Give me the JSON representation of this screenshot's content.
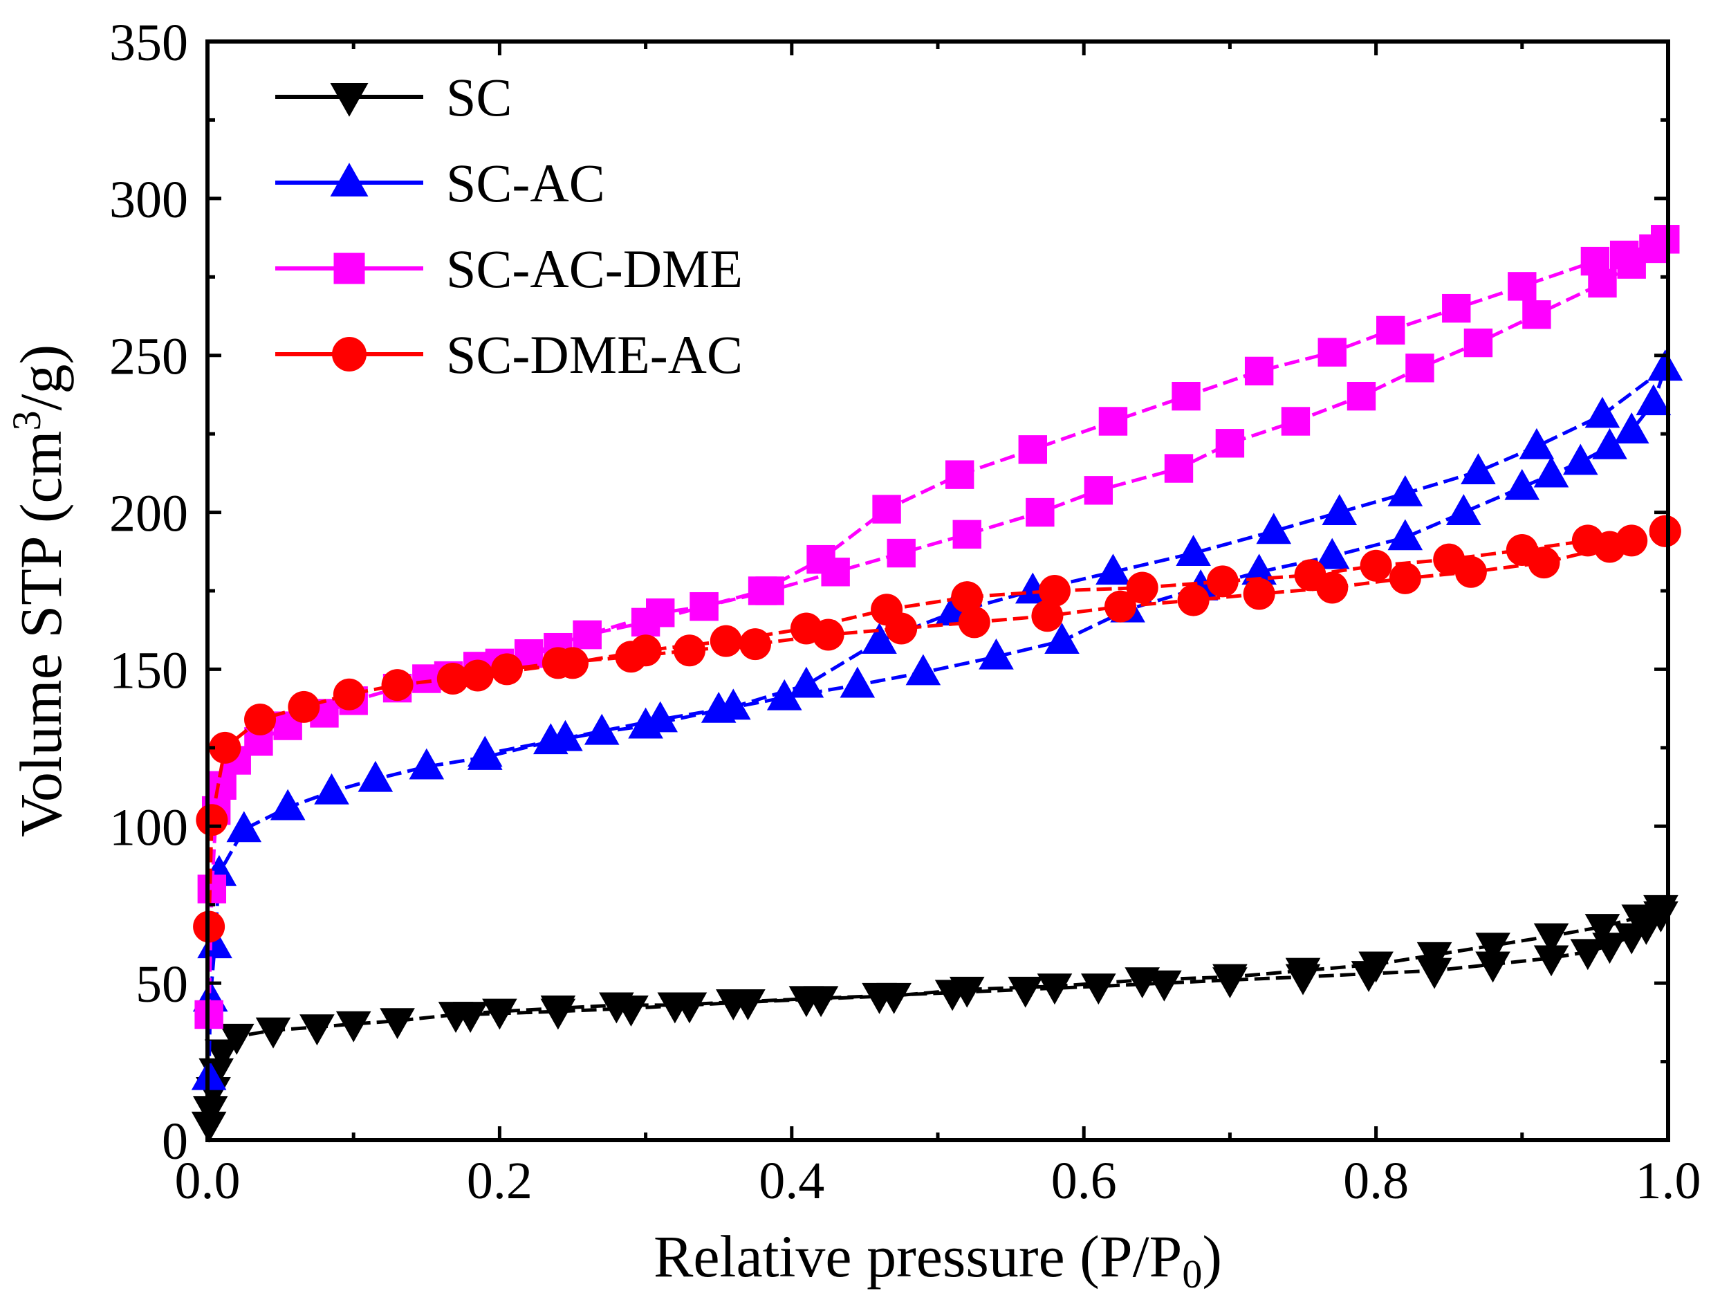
{
  "chart_data": {
    "type": "line",
    "xlabel": "Relative pressure (P/P",
    "xlabel_sub": "0",
    "xlabel_end": ")",
    "ylabel": "Volume STP (cm",
    "ylabel_sup": "3",
    "ylabel_end": "/g)",
    "xlim": [
      0,
      1.0
    ],
    "ylim": [
      0,
      350
    ],
    "x_ticks": [
      0.0,
      0.2,
      0.4,
      0.6,
      0.8,
      1.0
    ],
    "x_tick_labels": [
      "0.0",
      "0.2",
      "0.4",
      "0.6",
      "0.8",
      "1.0"
    ],
    "y_ticks": [
      0,
      50,
      100,
      150,
      200,
      250,
      300,
      350
    ],
    "y_tick_labels": [
      "0",
      "50",
      "100",
      "150",
      "200",
      "250",
      "300",
      "350"
    ],
    "legend_position": "top-left",
    "grid": false,
    "series": [
      {
        "name": "SC",
        "color": "#000000",
        "marker": "triangle-down",
        "adsorption": [
          [
            0.001,
            5
          ],
          [
            0.002,
            10
          ],
          [
            0.004,
            16
          ],
          [
            0.006,
            22
          ],
          [
            0.01,
            28
          ],
          [
            0.02,
            33
          ],
          [
            0.045,
            35
          ],
          [
            0.075,
            36
          ],
          [
            0.1,
            37
          ],
          [
            0.13,
            38
          ],
          [
            0.17,
            40
          ],
          [
            0.2,
            41
          ],
          [
            0.24,
            42
          ],
          [
            0.28,
            43
          ],
          [
            0.32,
            43
          ],
          [
            0.36,
            44
          ],
          [
            0.41,
            45
          ],
          [
            0.46,
            46
          ],
          [
            0.51,
            47
          ],
          [
            0.56,
            48
          ],
          [
            0.61,
            49
          ],
          [
            0.655,
            50
          ],
          [
            0.7,
            51
          ],
          [
            0.75,
            52
          ],
          [
            0.795,
            53
          ],
          [
            0.84,
            54
          ],
          [
            0.88,
            56
          ],
          [
            0.92,
            58
          ],
          [
            0.945,
            60
          ],
          [
            0.96,
            62
          ],
          [
            0.975,
            65
          ],
          [
            0.985,
            68
          ],
          [
            0.995,
            72
          ]
        ],
        "desorption": [
          [
            0.995,
            74
          ],
          [
            0.98,
            71
          ],
          [
            0.955,
            68
          ],
          [
            0.92,
            65
          ],
          [
            0.88,
            62
          ],
          [
            0.84,
            59
          ],
          [
            0.8,
            56
          ],
          [
            0.75,
            54
          ],
          [
            0.7,
            52
          ],
          [
            0.64,
            51
          ],
          [
            0.58,
            49
          ],
          [
            0.52,
            48
          ],
          [
            0.47,
            46
          ],
          [
            0.42,
            45
          ],
          [
            0.37,
            44
          ],
          [
            0.33,
            43
          ],
          [
            0.29,
            42
          ],
          [
            0.24,
            41
          ],
          [
            0.18,
            40
          ]
        ]
      },
      {
        "name": "SC-AC",
        "color": "#0000ff",
        "marker": "triangle-up",
        "adsorption": [
          [
            0.001,
            20
          ],
          [
            0.002,
            45
          ],
          [
            0.005,
            62
          ],
          [
            0.008,
            85
          ],
          [
            0.025,
            99
          ],
          [
            0.055,
            106
          ],
          [
            0.085,
            111
          ],
          [
            0.115,
            115
          ],
          [
            0.15,
            119
          ],
          [
            0.19,
            122
          ],
          [
            0.235,
            127
          ],
          [
            0.27,
            130
          ],
          [
            0.3,
            132
          ],
          [
            0.35,
            137
          ],
          [
            0.395,
            141
          ],
          [
            0.445,
            145
          ],
          [
            0.49,
            149
          ],
          [
            0.54,
            154
          ],
          [
            0.585,
            159
          ],
          [
            0.63,
            169
          ],
          [
            0.68,
            176
          ],
          [
            0.72,
            181
          ],
          [
            0.77,
            186
          ],
          [
            0.82,
            192
          ],
          [
            0.86,
            200
          ],
          [
            0.9,
            208
          ],
          [
            0.92,
            212
          ],
          [
            0.94,
            216
          ],
          [
            0.96,
            221
          ],
          [
            0.975,
            226
          ],
          [
            0.99,
            235
          ],
          [
            0.998,
            246
          ]
        ],
        "desorption": [
          [
            0.998,
            246
          ],
          [
            0.955,
            231
          ],
          [
            0.91,
            221
          ],
          [
            0.87,
            213
          ],
          [
            0.82,
            206
          ],
          [
            0.775,
            200
          ],
          [
            0.73,
            194
          ],
          [
            0.675,
            187
          ],
          [
            0.62,
            181
          ],
          [
            0.565,
            175
          ],
          [
            0.51,
            168
          ],
          [
            0.46,
            159
          ],
          [
            0.41,
            145
          ],
          [
            0.36,
            138
          ],
          [
            0.31,
            134
          ],
          [
            0.245,
            128
          ],
          [
            0.19,
            123
          ]
        ]
      },
      {
        "name": "SC-AC-DME",
        "color": "#ff00ff",
        "marker": "square",
        "adsorption": [
          [
            0.001,
            40
          ],
          [
            0.003,
            80
          ],
          [
            0.006,
            105
          ],
          [
            0.01,
            113
          ],
          [
            0.02,
            121
          ],
          [
            0.035,
            127
          ],
          [
            0.055,
            132
          ],
          [
            0.08,
            136
          ],
          [
            0.1,
            140
          ],
          [
            0.13,
            144
          ],
          [
            0.165,
            148
          ],
          [
            0.2,
            152
          ],
          [
            0.24,
            157
          ],
          [
            0.26,
            161
          ],
          [
            0.3,
            165
          ],
          [
            0.34,
            170
          ],
          [
            0.385,
            175
          ],
          [
            0.43,
            181
          ],
          [
            0.475,
            187
          ],
          [
            0.52,
            193
          ],
          [
            0.57,
            200
          ],
          [
            0.61,
            207
          ],
          [
            0.665,
            214
          ],
          [
            0.7,
            222
          ],
          [
            0.745,
            229
          ],
          [
            0.79,
            237
          ],
          [
            0.83,
            246
          ],
          [
            0.87,
            254
          ],
          [
            0.91,
            263
          ],
          [
            0.955,
            273
          ],
          [
            0.975,
            279
          ],
          [
            0.99,
            284
          ],
          [
            0.998,
            287
          ]
        ],
        "desorption": [
          [
            0.998,
            287
          ],
          [
            0.97,
            282
          ],
          [
            0.95,
            280
          ],
          [
            0.9,
            272
          ],
          [
            0.855,
            265
          ],
          [
            0.81,
            258
          ],
          [
            0.77,
            251
          ],
          [
            0.72,
            245
          ],
          [
            0.67,
            237
          ],
          [
            0.62,
            229
          ],
          [
            0.565,
            220
          ],
          [
            0.515,
            212
          ],
          [
            0.465,
            201
          ],
          [
            0.42,
            185
          ],
          [
            0.38,
            175
          ],
          [
            0.34,
            170
          ],
          [
            0.31,
            168
          ],
          [
            0.26,
            161
          ],
          [
            0.22,
            155
          ],
          [
            0.185,
            151
          ],
          [
            0.15,
            147
          ]
        ]
      },
      {
        "name": "SC-DME-AC",
        "color": "#ff0000",
        "marker": "circle",
        "adsorption": [
          [
            0.001,
            68
          ],
          [
            0.003,
            102
          ],
          [
            0.012,
            125
          ],
          [
            0.036,
            134
          ],
          [
            0.066,
            138
          ],
          [
            0.097,
            142
          ],
          [
            0.13,
            145
          ],
          [
            0.168,
            147
          ],
          [
            0.205,
            150
          ],
          [
            0.24,
            152
          ],
          [
            0.29,
            154
          ],
          [
            0.33,
            156
          ],
          [
            0.375,
            158
          ],
          [
            0.425,
            161
          ],
          [
            0.475,
            163
          ],
          [
            0.525,
            165
          ],
          [
            0.575,
            167
          ],
          [
            0.625,
            170
          ],
          [
            0.675,
            172
          ],
          [
            0.72,
            174
          ],
          [
            0.77,
            176
          ],
          [
            0.82,
            179
          ],
          [
            0.865,
            181
          ],
          [
            0.915,
            184
          ],
          [
            0.96,
            189
          ],
          [
            0.998,
            194
          ]
        ],
        "desorption": [
          [
            0.998,
            194
          ],
          [
            0.975,
            191
          ],
          [
            0.945,
            191
          ],
          [
            0.9,
            188
          ],
          [
            0.85,
            185
          ],
          [
            0.8,
            183
          ],
          [
            0.755,
            180
          ],
          [
            0.695,
            178
          ],
          [
            0.64,
            176
          ],
          [
            0.58,
            175
          ],
          [
            0.52,
            173
          ],
          [
            0.465,
            169
          ],
          [
            0.41,
            163
          ],
          [
            0.355,
            159
          ],
          [
            0.3,
            156
          ],
          [
            0.25,
            152
          ],
          [
            0.185,
            148
          ]
        ]
      }
    ]
  }
}
